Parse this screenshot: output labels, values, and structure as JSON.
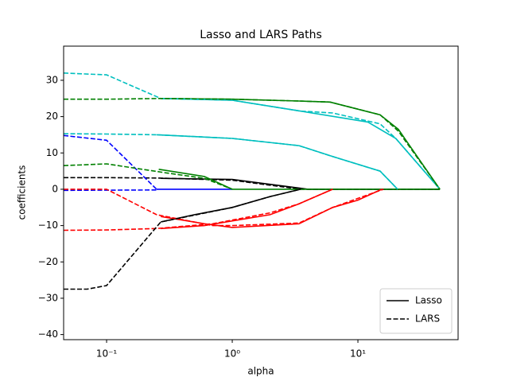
{
  "chart_data": {
    "type": "line",
    "title": "Lasso and LARS Paths",
    "x_label": "alpha",
    "y_label": "coefficients",
    "xscale": "log",
    "xlim": [
      0.0455,
      62.7
    ],
    "ylim": [
      -41.4,
      39.4
    ],
    "xticks": [
      {
        "value": 0.1,
        "label": "10⁻¹"
      },
      {
        "value": 1,
        "label": "10⁰"
      },
      {
        "value": 10,
        "label": "10¹"
      }
    ],
    "yticks": [
      {
        "value": -40,
        "label": "−40"
      },
      {
        "value": -30,
        "label": "−30"
      },
      {
        "value": -20,
        "label": "−20"
      },
      {
        "value": -10,
        "label": "−10"
      },
      0,
      10,
      20,
      30
    ],
    "legend_loc": "lower right",
    "series": [
      {
        "name": "Lasso",
        "linestyle": "solid",
        "color": "#000000",
        "x": [
          0.27,
          1,
          4,
          44.9
        ],
        "values": [
          3,
          2.7,
          0,
          0
        ]
      },
      {
        "name": "LARS",
        "linestyle": "dashed",
        "color": "#000000",
        "x": [
          0.0455,
          0.1,
          0.25,
          1,
          3.5,
          44.9
        ],
        "values": [
          3.2,
          3.2,
          3.1,
          2.5,
          0,
          0
        ]
      },
      {
        "name": "Lasso",
        "linestyle": "solid",
        "color": "#00bfbf",
        "x": [
          0.27,
          1,
          3.5,
          12,
          20,
          44.9
        ],
        "values": [
          25,
          24.5,
          21.5,
          18.5,
          14,
          0
        ]
      },
      {
        "name": "Lasso",
        "linestyle": "solid",
        "color": "#008000",
        "x": [
          0.27,
          1,
          3.4,
          6,
          15,
          21,
          44.9
        ],
        "values": [
          25,
          24.8,
          24.3,
          24,
          20.5,
          16.5,
          0
        ]
      },
      {
        "name": "Lasso",
        "linestyle": "solid",
        "color": "#00bfbf",
        "x": [
          0.25,
          1,
          3.4,
          6.3,
          15,
          20.7
        ],
        "values": [
          15,
          14,
          12,
          9,
          5,
          0
        ]
      },
      {
        "name": "Lasso",
        "linestyle": "solid",
        "color": "#0000ff",
        "x": [
          0.25,
          1
        ],
        "values": [
          0,
          0
        ]
      },
      {
        "name": "Lasso",
        "linestyle": "solid",
        "color": "#008000",
        "x": [
          0.26,
          0.6,
          1,
          44.9
        ],
        "values": [
          5.5,
          3.5,
          0,
          0
        ]
      },
      {
        "name": "Lasso",
        "linestyle": "solid",
        "color": "#ff0000",
        "x": [
          0.27,
          0.6,
          1,
          3.4,
          6.3,
          10,
          15.5
        ],
        "values": [
          -7.5,
          -9.5,
          -10.5,
          -9.5,
          -5,
          -3,
          0
        ]
      },
      {
        "name": "Lasso",
        "linestyle": "solid",
        "color": "#ff0000",
        "x": [
          0.27,
          0.6,
          2,
          3.4,
          6.3
        ],
        "values": [
          -10.8,
          -10,
          -7,
          -4,
          0
        ]
      },
      {
        "name": "Lasso",
        "linestyle": "solid",
        "color": "#000000",
        "x": [
          0.27,
          0.5,
          1,
          2,
          3.5
        ],
        "values": [
          -9,
          -7,
          -5,
          -2,
          0
        ]
      },
      {
        "name": "LARS",
        "linestyle": "dashed",
        "color": "#00bfbf",
        "x": [
          0.0455,
          0.1,
          0.27,
          1,
          3.5,
          6.3,
          15,
          20,
          44.9
        ],
        "values": [
          32,
          31.5,
          25,
          24.5,
          21.5,
          21,
          18,
          14,
          0
        ]
      },
      {
        "name": "LARS",
        "linestyle": "dashed",
        "color": "#008000",
        "x": [
          0.0455,
          0.1,
          0.27,
          1,
          3.4,
          6,
          15,
          21,
          44.9
        ],
        "values": [
          24.8,
          24.8,
          25,
          24.8,
          24.3,
          24,
          20.5,
          16,
          0
        ]
      },
      {
        "name": "LARS",
        "linestyle": "dashed",
        "color": "#00bfbf",
        "x": [
          0.0455,
          0.1,
          0.25,
          1,
          3.4,
          6.3,
          15,
          20.7
        ],
        "values": [
          15.3,
          15.2,
          15,
          14,
          12,
          9,
          5,
          0
        ]
      },
      {
        "name": "LARS",
        "linestyle": "dashed",
        "color": "#0000ff",
        "x": [
          0.0455,
          0.1,
          0.25
        ],
        "values": [
          14.8,
          13.5,
          0
        ]
      },
      {
        "name": "LARS",
        "linestyle": "dashed",
        "color": "#008000",
        "x": [
          0.0455,
          0.1,
          0.3,
          0.6,
          1
        ],
        "values": [
          6.5,
          7,
          4.5,
          3,
          0
        ]
      },
      {
        "name": "LARS",
        "linestyle": "dashed",
        "color": "#0000ff",
        "x": [
          0.0455,
          0.25
        ],
        "values": [
          -0.3,
          -0.2
        ]
      },
      {
        "name": "LARS",
        "linestyle": "dashed",
        "color": "#ff0000",
        "x": [
          0.0455,
          0.1,
          0.25,
          0.7,
          1,
          3.4,
          6.3,
          10,
          16
        ],
        "values": [
          0,
          0,
          -7,
          -10,
          -10,
          -9.3,
          -5,
          -2.5,
          0
        ]
      },
      {
        "name": "LARS",
        "linestyle": "dashed",
        "color": "#ff0000",
        "x": [
          0.0455,
          0.1,
          0.25,
          0.7,
          2,
          3.4,
          6.3
        ],
        "values": [
          -11.3,
          -11.2,
          -10.8,
          -9.5,
          -6.5,
          -4,
          0
        ]
      },
      {
        "name": "LARS",
        "linestyle": "dashed",
        "color": "#000000",
        "x": [
          0.0455,
          0.07,
          0.1,
          0.27,
          1,
          2,
          3.5
        ],
        "values": [
          -27.5,
          -27.5,
          -26.5,
          -9,
          -5,
          -2,
          0
        ]
      }
    ]
  }
}
